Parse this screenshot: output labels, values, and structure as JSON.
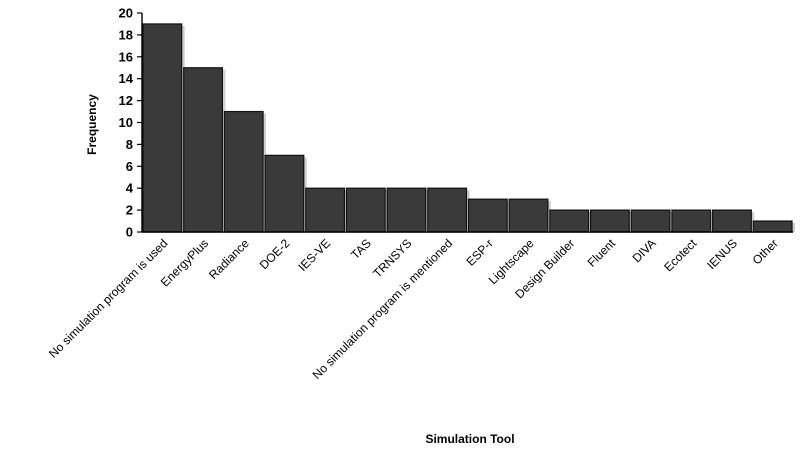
{
  "chart_data": {
    "type": "bar",
    "title": "",
    "xlabel": "Simulation Tool",
    "ylabel": "Frequency",
    "ylim": [
      0,
      20
    ],
    "yticks": [
      0,
      2,
      4,
      6,
      8,
      10,
      12,
      14,
      16,
      18,
      20
    ],
    "grid": false,
    "legend": "none",
    "bar_color": "#3a3a3a",
    "categories": [
      "No simulation program is used",
      "EnergyPlus",
      "Radiance",
      "DOE-2",
      "IES-VE",
      "TAS",
      "TRNSYS",
      "No simulation program is mentioned",
      "ESP-r",
      "Lightscape",
      "Design Builder",
      "Fluent",
      "DIVA",
      "Ecotect",
      "IENUS",
      "Other"
    ],
    "values": [
      19,
      15,
      11,
      7,
      4,
      4,
      4,
      4,
      3,
      3,
      2,
      2,
      2,
      2,
      2,
      1
    ]
  }
}
